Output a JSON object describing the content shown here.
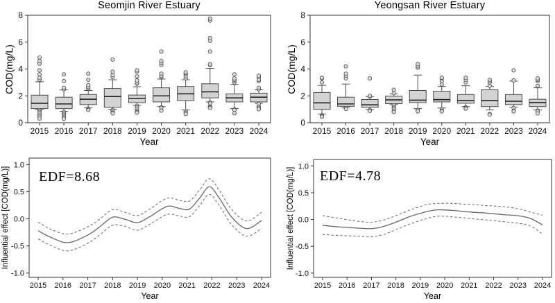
{
  "figure": {
    "background": "#ffffff"
  },
  "colors": {
    "frame": "#333333",
    "tick_text": "#111111",
    "box_fill": "#d3d3d3",
    "box_stroke": "#4a4a4a",
    "median": "#222222",
    "outlier_fill": "#d9d9d9",
    "outlier_stroke": "#5a5a5a",
    "line": "#666666"
  },
  "chart_data": [
    {
      "type": "boxplot",
      "title": "Seomjin River Estuary",
      "xlabel": "Year",
      "ylabel": "COD(mg/L)",
      "ylim": [
        0,
        8
      ],
      "yticks": [
        0,
        2,
        4,
        6,
        8
      ],
      "grid": false,
      "categories": [
        "2015",
        "2016",
        "2017",
        "2018",
        "2019",
        "2020",
        "2021",
        "2022",
        "2023",
        "2024"
      ],
      "boxes": [
        {
          "year": "2015",
          "whisker_low": 1.0,
          "q1": 1.05,
          "median": 1.45,
          "q3": 2.05,
          "whisker_high": 3.05,
          "outliers_high": [
            3.2,
            3.35,
            3.6,
            3.9,
            4.4,
            4.6,
            4.85
          ],
          "outliers_low": [
            0.9,
            0.8,
            0.7,
            0.55,
            0.45,
            0.3
          ]
        },
        {
          "year": "2016",
          "whisker_low": 0.85,
          "q1": 1.05,
          "median": 1.4,
          "q3": 1.9,
          "whisker_high": 2.45,
          "outliers_high": [
            2.5,
            2.6,
            3.1,
            3.6
          ],
          "outliers_low": [
            0.8,
            0.7,
            0.6,
            0.5,
            0.4,
            0.3
          ]
        },
        {
          "year": "2017",
          "whisker_low": 1.1,
          "q1": 1.35,
          "median": 1.75,
          "q3": 2.1,
          "whisker_high": 2.4,
          "outliers_high": [
            2.55,
            2.65,
            2.8,
            3.2,
            3.65
          ],
          "outliers_low": [
            1.05,
            1.0,
            0.95
          ]
        },
        {
          "year": "2018",
          "whisker_low": 1.0,
          "q1": 1.15,
          "median": 1.95,
          "q3": 2.55,
          "whisker_high": 3.2,
          "outliers_high": [
            3.4,
            3.55,
            3.8,
            4.7
          ],
          "outliers_low": [
            0.95,
            0.85,
            0.75,
            0.7
          ]
        },
        {
          "year": "2019",
          "whisker_low": 1.3,
          "q1": 1.5,
          "median": 1.8,
          "q3": 2.06,
          "whisker_high": 2.68,
          "outliers_high": [
            2.9,
            3.0,
            3.15,
            3.45,
            3.8,
            3.9
          ],
          "outliers_low": [
            1.25,
            1.15,
            1.05,
            0.9,
            0.8,
            0.75
          ]
        },
        {
          "year": "2020",
          "whisker_low": 1.2,
          "q1": 1.55,
          "median": 2.0,
          "q3": 2.6,
          "whisker_high": 3.25,
          "outliers_high": [
            3.4,
            3.5,
            3.65,
            4.3,
            4.45,
            4.6,
            5.3
          ],
          "outliers_low": [
            1.15,
            1.1,
            0.9
          ]
        },
        {
          "year": "2021",
          "whisker_low": 0.95,
          "q1": 1.65,
          "median": 2.15,
          "q3": 2.7,
          "whisker_high": 3.2,
          "outliers_high": [
            3.3,
            3.45,
            3.6,
            3.7,
            3.75
          ],
          "outliers_low": [
            0.85,
            0.75,
            0.65
          ]
        },
        {
          "year": "2022",
          "whisker_low": 1.55,
          "q1": 1.85,
          "median": 2.3,
          "q3": 2.9,
          "whisker_high": 4.05,
          "outliers_high": [
            4.3,
            4.35,
            5.3,
            6.1,
            6.3,
            7.6,
            7.75
          ],
          "outliers_low": [
            1.5,
            1.45,
            1.2,
            1.15,
            1.1
          ]
        },
        {
          "year": "2023",
          "whisker_low": 1.05,
          "q1": 1.55,
          "median": 1.85,
          "q3": 2.15,
          "whisker_high": 2.85,
          "outliers_high": [
            3.0,
            3.1,
            3.2,
            3.3,
            3.6
          ],
          "outliers_low": [
            1.0,
            0.95,
            0.7
          ]
        },
        {
          "year": "2024",
          "whisker_low": 1.45,
          "q1": 1.55,
          "median": 1.9,
          "q3": 2.2,
          "whisker_high": 2.45,
          "outliers_high": [
            2.5,
            2.6,
            3.1,
            3.2,
            3.4,
            3.5
          ],
          "outliers_low": [
            1.4,
            1.2,
            1.1,
            1.0
          ]
        }
      ]
    },
    {
      "type": "boxplot",
      "title": "Yeongsan River Estuary",
      "xlabel": "Year",
      "ylabel": "COD(mg/L)",
      "ylim": [
        0,
        8
      ],
      "yticks": [
        0,
        2,
        4,
        6,
        8
      ],
      "grid": false,
      "categories": [
        "2015",
        "2016",
        "2017",
        "2018",
        "2019",
        "2020",
        "2021",
        "2022",
        "2023",
        "2024"
      ],
      "boxes": [
        {
          "year": "2015",
          "whisker_low": 0.65,
          "q1": 1.0,
          "median": 1.48,
          "q3": 2.25,
          "whisker_high": 2.78,
          "outliers_high": [
            3.0,
            3.3,
            3.35
          ],
          "outliers_low": [
            0.55,
            0.5,
            0.45
          ]
        },
        {
          "year": "2016",
          "whisker_low": 1.1,
          "q1": 1.22,
          "median": 1.4,
          "q3": 1.9,
          "whisker_high": 2.88,
          "outliers_high": [
            3.3,
            3.5,
            3.65,
            4.2
          ],
          "outliers_low": [
            1.08,
            1.02
          ]
        },
        {
          "year": "2017",
          "whisker_low": 0.98,
          "q1": 1.15,
          "median": 1.33,
          "q3": 1.73,
          "whisker_high": 1.95,
          "outliers_high": [
            1.95,
            2.0,
            3.3
          ],
          "outliers_low": [
            0.95,
            0.88
          ]
        },
        {
          "year": "2018",
          "whisker_low": 1.35,
          "q1": 1.42,
          "median": 1.7,
          "q3": 1.98,
          "whisker_high": 2.15,
          "outliers_high": [
            2.2,
            2.45
          ],
          "outliers_low": [
            1.3,
            1.2,
            1.1,
            1.0,
            0.85,
            0.8
          ]
        },
        {
          "year": "2019",
          "whisker_low": 1.05,
          "q1": 1.5,
          "median": 1.68,
          "q3": 2.4,
          "whisker_high": 3.55,
          "outliers_high": [
            4.1,
            4.2,
            4.35
          ],
          "outliers_low": [
            0.95,
            0.85
          ]
        },
        {
          "year": "2020",
          "whisker_low": 1.1,
          "q1": 1.55,
          "median": 1.72,
          "q3": 2.35,
          "whisker_high": 2.7,
          "outliers_high": [
            2.85,
            3.1,
            3.3,
            3.35
          ],
          "outliers_low": [
            1.0,
            0.9,
            0.85
          ]
        },
        {
          "year": "2021",
          "whisker_low": 1.2,
          "q1": 1.45,
          "median": 1.65,
          "q3": 2.1,
          "whisker_high": 2.75,
          "outliers_high": [
            3.0,
            3.2,
            3.35
          ],
          "outliers_low": [
            1.15,
            1.1,
            1.05
          ]
        },
        {
          "year": "2022",
          "whisker_low": 0.95,
          "q1": 1.2,
          "median": 1.65,
          "q3": 2.45,
          "whisker_high": 2.7,
          "outliers_high": [
            2.75,
            3.0,
            3.1,
            3.2
          ],
          "outliers_low": [
            0.65,
            0.6
          ]
        },
        {
          "year": "2023",
          "whisker_low": 1.15,
          "q1": 1.35,
          "median": 1.6,
          "q3": 2.1,
          "whisker_high": 3.1,
          "outliers_high": [
            3.15,
            3.9
          ],
          "outliers_low": [
            1.1,
            0.9,
            0.85
          ]
        },
        {
          "year": "2024",
          "whisker_low": 0.95,
          "q1": 1.2,
          "median": 1.5,
          "q3": 1.75,
          "whisker_high": 2.6,
          "outliers_high": [
            2.75,
            3.1,
            3.2,
            3.3
          ],
          "outliers_low": [
            0.9,
            0.85,
            0.7
          ]
        }
      ]
    },
    {
      "type": "line",
      "annotation": "EDF=8.68",
      "xlabel": "Year",
      "ylabel": "Influential effect [COD(mg/L)]",
      "ylim": [
        -1.08,
        1.12
      ],
      "yticks": [
        1.0,
        0.5,
        0.0,
        -0.5,
        -1.0
      ],
      "xticks": [
        2015,
        2016,
        2017,
        2018,
        2019,
        2020,
        2021,
        2022,
        2023,
        2024
      ],
      "grid": false,
      "legend": "none",
      "x": [
        2015,
        2015.5,
        2016.2,
        2017,
        2017.5,
        2018,
        2018.5,
        2019,
        2019.5,
        2020.2,
        2020.7,
        2021.1,
        2021.5,
        2021.9,
        2022.3,
        2022.8,
        2023.4,
        2024
      ],
      "series": [
        {
          "name": "smooth",
          "style": "solid",
          "values": [
            -0.22,
            -0.34,
            -0.44,
            -0.3,
            -0.14,
            0.03,
            -0.01,
            -0.07,
            0.04,
            0.23,
            0.19,
            0.18,
            0.38,
            0.59,
            0.38,
            0.03,
            -0.18,
            -0.03
          ]
        },
        {
          "name": "ci-upper",
          "style": "dashed",
          "values": [
            -0.06,
            -0.19,
            -0.28,
            -0.15,
            0.0,
            0.17,
            0.12,
            0.06,
            0.18,
            0.38,
            0.34,
            0.33,
            0.53,
            0.74,
            0.52,
            0.17,
            -0.04,
            0.12
          ]
        },
        {
          "name": "ci-lower",
          "style": "dashed",
          "values": [
            -0.37,
            -0.49,
            -0.59,
            -0.45,
            -0.29,
            -0.12,
            -0.14,
            -0.21,
            -0.1,
            0.08,
            0.05,
            0.04,
            0.24,
            0.45,
            0.24,
            -0.11,
            -0.32,
            -0.18
          ]
        }
      ]
    },
    {
      "type": "line",
      "annotation": "EDF=4.78",
      "xlabel": "Year",
      "ylabel": "Influential effect [COD(mg/L)]",
      "ylim": [
        -1.08,
        1.12
      ],
      "yticks": [
        1.0,
        0.5,
        0.0,
        -0.5,
        -1.0
      ],
      "xticks": [
        2015,
        2016,
        2017,
        2018,
        2019,
        2020,
        2021,
        2022,
        2023,
        2024
      ],
      "grid": false,
      "legend": "none",
      "x": [
        2015,
        2015.7,
        2016.4,
        2017,
        2017.5,
        2018,
        2018.6,
        2019.2,
        2019.7,
        2020.3,
        2021,
        2021.7,
        2022.4,
        2023,
        2023.5,
        2024
      ],
      "series": [
        {
          "name": "smooth",
          "style": "solid",
          "values": [
            -0.11,
            -0.14,
            -0.16,
            -0.17,
            -0.13,
            -0.05,
            0.06,
            0.14,
            0.18,
            0.17,
            0.14,
            0.12,
            0.09,
            0.07,
            0.02,
            -0.1
          ]
        },
        {
          "name": "ci-upper",
          "style": "dashed",
          "values": [
            0.07,
            0.02,
            -0.03,
            -0.05,
            -0.01,
            0.07,
            0.18,
            0.27,
            0.3,
            0.3,
            0.28,
            0.26,
            0.24,
            0.2,
            0.14,
            0.08
          ]
        },
        {
          "name": "ci-lower",
          "style": "dashed",
          "values": [
            -0.28,
            -0.3,
            -0.31,
            -0.32,
            -0.28,
            -0.19,
            -0.08,
            0.01,
            0.06,
            0.05,
            0.02,
            -0.01,
            -0.04,
            -0.07,
            -0.12,
            -0.27
          ]
        }
      ]
    }
  ]
}
